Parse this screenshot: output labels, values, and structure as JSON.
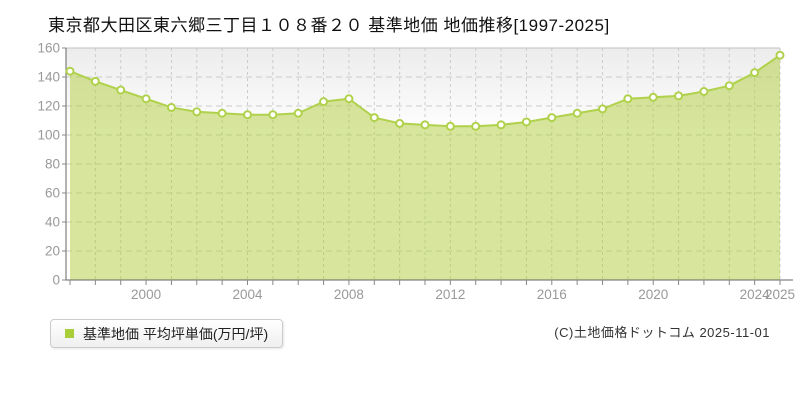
{
  "header": {
    "title": "東京都大田区東六郷三丁目１０８番２０ 基準地価 地価推移[1997-2025]"
  },
  "legend": {
    "swatch_color": "#a8cf3a",
    "label": "基準地価 平均坪単価(万円/坪)"
  },
  "footer": {
    "copyright": "(C)土地価格ドットコム 2025-11-01"
  },
  "chart_data": {
    "type": "area",
    "title": "東京都大田区東六郷三丁目１０８番２０ 基準地価 地価推移[1997-2025]",
    "x": [
      1997,
      1998,
      1999,
      2000,
      2001,
      2002,
      2003,
      2004,
      2005,
      2006,
      2007,
      2008,
      2009,
      2010,
      2011,
      2012,
      2013,
      2014,
      2015,
      2016,
      2017,
      2018,
      2019,
      2020,
      2021,
      2022,
      2023,
      2024,
      2025
    ],
    "series": [
      {
        "name": "基準地価 平均坪単価(万円/坪)",
        "values": [
          144,
          137,
          131,
          125,
          119,
          116,
          115,
          114,
          114,
          115,
          123,
          125,
          112,
          108,
          107,
          106,
          106,
          107,
          109,
          112,
          115,
          118,
          125,
          126,
          127,
          130,
          134,
          143,
          155
        ]
      }
    ],
    "xlabel": "",
    "ylabel": "平均坪単価(万円/坪)",
    "ylim": [
      0,
      160
    ],
    "ytick_step": 20,
    "xticks_labeled": [
      2000,
      2004,
      2008,
      2012,
      2016,
      2020,
      2024,
      2025
    ],
    "grid": true,
    "legend_position": "bottom-left",
    "colors": {
      "line": "#b0d14b",
      "fill": "rgba(176,206,58,0.5)",
      "point_fill": "#ffffff",
      "point_stroke": "#b0d14b",
      "grid": "#cccccc",
      "plot_top_border": "#c2c2c2",
      "axis": "#666666",
      "tick": "#888888",
      "tick_label": "#999999",
      "bg_top": "#ececec",
      "bg_bottom": "#ffffff"
    }
  }
}
